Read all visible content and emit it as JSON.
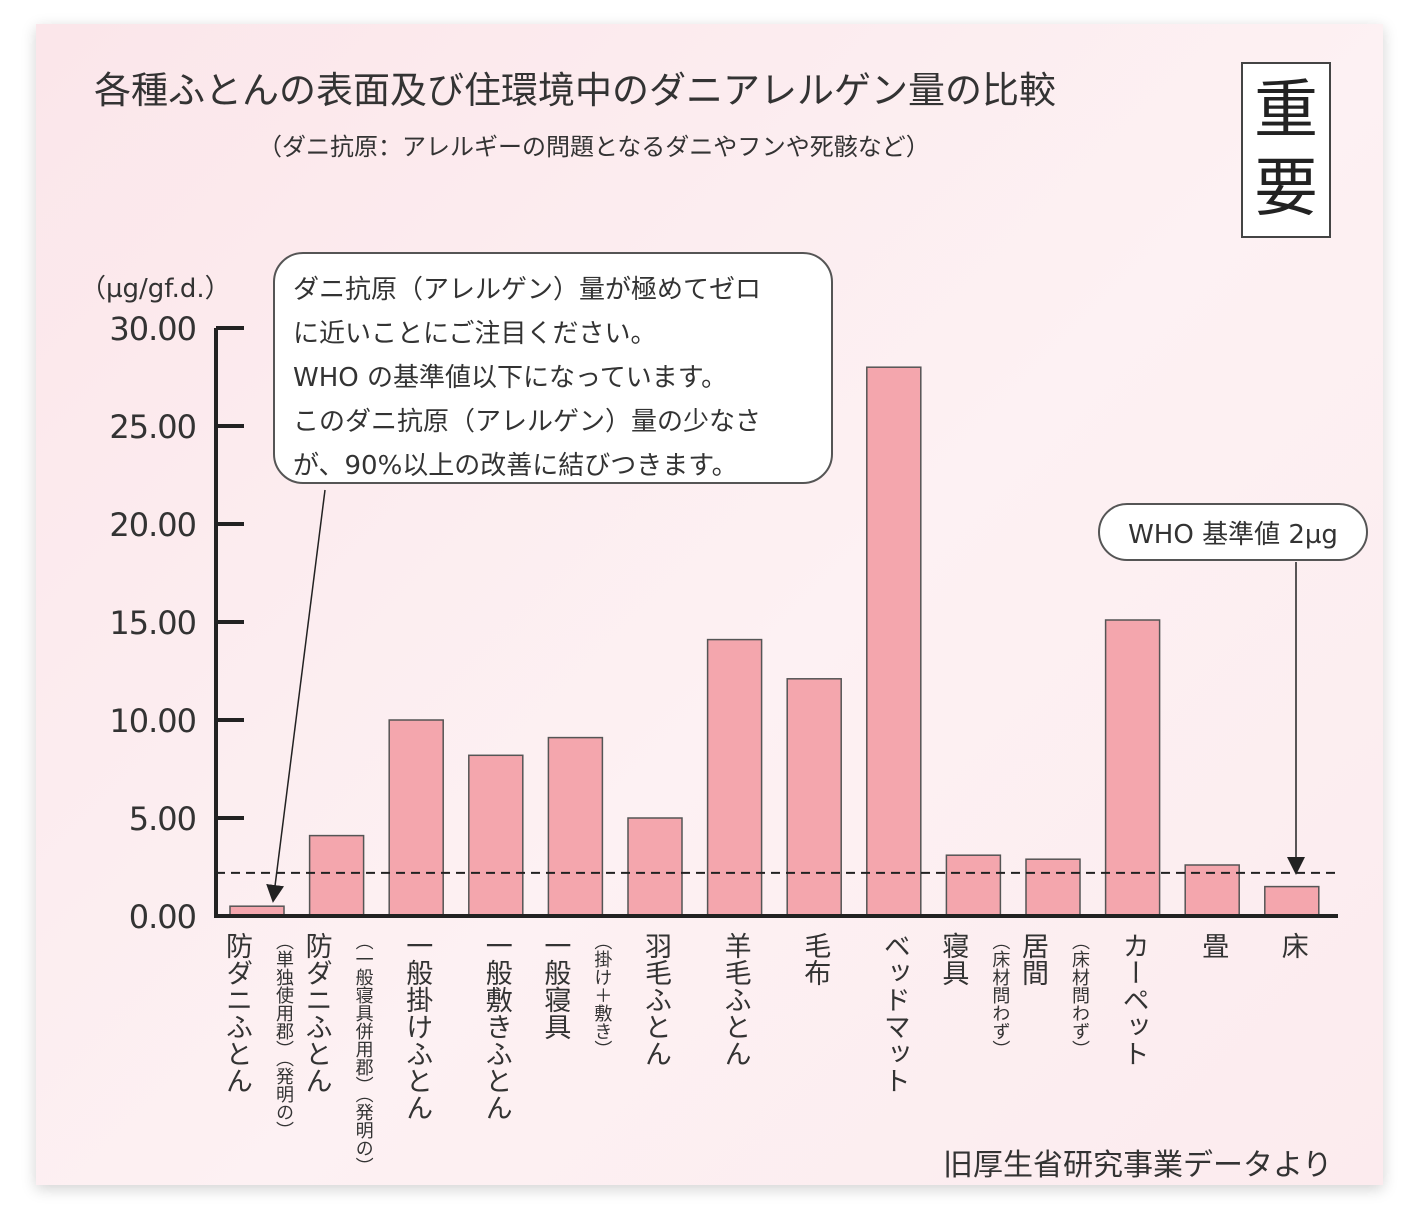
{
  "chart_data": {
    "type": "bar",
    "title": "各種ふとんの表面及び住環境中のダニアレルゲン量の比較",
    "subtitle": "（ダニ抗原：アレルギーの問題となるダニやフンや死骸など）",
    "ylabel": "（µg/gf.d.）",
    "ylim": [
      0,
      30
    ],
    "yticks": [
      "30.00",
      "25.00",
      "20.00",
      "15.00",
      "10.00",
      "5.00",
      "0.00"
    ],
    "categories": [
      {
        "label": "防ダニふとん",
        "sub": "（単独使用郡）（発明の）"
      },
      {
        "label": "防ダニふとん",
        "sub": "（一般寝具併用郡）（発明の）"
      },
      {
        "label": "一般掛けふとん",
        "sub": ""
      },
      {
        "label": "一般敷きふとん",
        "sub": ""
      },
      {
        "label": "一般寝具",
        "sub": "（掛け＋敷き）"
      },
      {
        "label": "羽毛ふとん",
        "sub": ""
      },
      {
        "label": "羊毛ふとん",
        "sub": ""
      },
      {
        "label": "毛布",
        "sub": ""
      },
      {
        "label": "ベッドマット",
        "sub": ""
      },
      {
        "label": "寝具",
        "sub": "（床材問わず）"
      },
      {
        "label": "居間",
        "sub": "（床材問わず）"
      },
      {
        "label": "カーペット",
        "sub": ""
      },
      {
        "label": "畳",
        "sub": ""
      },
      {
        "label": "床",
        "sub": ""
      }
    ],
    "values": [
      0.5,
      4.1,
      10.0,
      8.2,
      9.1,
      5.0,
      14.1,
      12.1,
      28.0,
      3.1,
      2.9,
      15.1,
      2.6,
      1.5
    ],
    "reference_line": {
      "value": 2.2,
      "style": "dashed"
    },
    "grid": false,
    "colors": {
      "bar": "#f4a6ad",
      "bar_stroke": "#555555",
      "axis": "#222222"
    }
  },
  "badge": [
    "重",
    "要"
  ],
  "callout": {
    "lines": [
      "ダニ抗原（アレルゲン）量が極めてゼロ",
      "に近いことにご注目ください。",
      "WHO の基準値以下になっています。",
      "このダニ抗原（アレルゲン）量の少なさ",
      "が、90%以上の改善に結びつきます。"
    ]
  },
  "who_callout": "WHO 基準値 2µg",
  "source": "旧厚生省研究事業データより"
}
